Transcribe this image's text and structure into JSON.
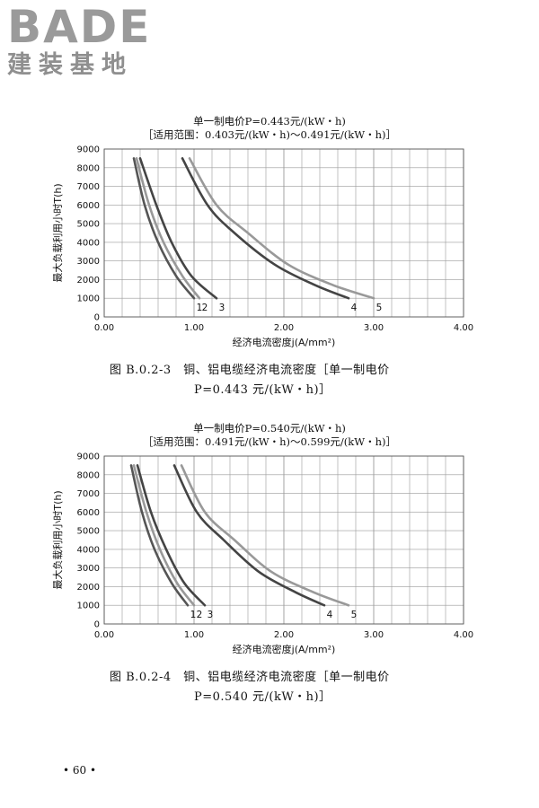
{
  "header": {
    "logo_text": "BADE",
    "logo_subtitle": "建装基地"
  },
  "page_number": "• 60 •",
  "chart_data": [
    {
      "type": "line",
      "title": "单一制电价P=0.443元/(kW・h)",
      "subtitle": "［适用范围：0.403元/(kW・h)～0.491元/(kW・h)］",
      "xlabel": "经济电流密度j(A/mm²)",
      "ylabel": "最大负载利用小时T(h)",
      "xlim": [
        0,
        4
      ],
      "ylim": [
        0,
        9000
      ],
      "xticks": [
        "0.00",
        "1.00",
        "2.00",
        "3.00",
        "4.00"
      ],
      "yticks": [
        "0",
        "1000",
        "2000",
        "3000",
        "4000",
        "5000",
        "6000",
        "7000",
        "8000",
        "9000"
      ],
      "grid": true,
      "series": [
        {
          "name": "1",
          "color": "#555555",
          "points": [
            [
              0.33,
              8500
            ],
            [
              0.45,
              6000
            ],
            [
              0.6,
              4000
            ],
            [
              0.8,
              2200
            ],
            [
              1.0,
              1000
            ]
          ]
        },
        {
          "name": "2",
          "color": "#999999",
          "points": [
            [
              0.36,
              8500
            ],
            [
              0.5,
              6000
            ],
            [
              0.66,
              4000
            ],
            [
              0.87,
              2200
            ],
            [
              1.06,
              1000
            ]
          ]
        },
        {
          "name": "3",
          "color": "#444444",
          "points": [
            [
              0.4,
              8500
            ],
            [
              0.58,
              6000
            ],
            [
              0.75,
              4000
            ],
            [
              0.97,
              2200
            ],
            [
              1.25,
              1000
            ]
          ]
        },
        {
          "name": "4",
          "color": "#444444",
          "points": [
            [
              0.87,
              8500
            ],
            [
              1.15,
              6000
            ],
            [
              1.45,
              4500
            ],
            [
              1.9,
              2800
            ],
            [
              2.35,
              1700
            ],
            [
              2.72,
              1000
            ]
          ]
        },
        {
          "name": "5",
          "color": "#999999",
          "points": [
            [
              0.95,
              8500
            ],
            [
              1.25,
              6000
            ],
            [
              1.6,
              4500
            ],
            [
              2.05,
              2800
            ],
            [
              2.55,
              1700
            ],
            [
              3.0,
              1000
            ]
          ]
        }
      ],
      "caption_line1": "图 B.0.2-3　铜、铝电缆经济电流密度［单一制电价",
      "caption_line2": "P=0.443 元/(kW・h)］"
    },
    {
      "type": "line",
      "title": "单一制电价P=0.540元/(kW・h)",
      "subtitle": "［适用范围：0.491元/(kW・h)～0.599元/(kW・h)］",
      "xlabel": "经济电流密度j(A/mm²)",
      "ylabel": "最大负载利用小时T(h)",
      "xlim": [
        0,
        4
      ],
      "ylim": [
        0,
        9000
      ],
      "xticks": [
        "0.00",
        "1.00",
        "2.00",
        "3.00",
        "4.00"
      ],
      "yticks": [
        "0",
        "1000",
        "2000",
        "3000",
        "4000",
        "5000",
        "6000",
        "7000",
        "8000",
        "9000"
      ],
      "grid": true,
      "series": [
        {
          "name": "1",
          "color": "#555555",
          "points": [
            [
              0.3,
              8500
            ],
            [
              0.42,
              6000
            ],
            [
              0.56,
              4000
            ],
            [
              0.75,
              2200
            ],
            [
              0.93,
              1000
            ]
          ]
        },
        {
          "name": "2",
          "color": "#999999",
          "points": [
            [
              0.33,
              8500
            ],
            [
              0.47,
              6000
            ],
            [
              0.62,
              4000
            ],
            [
              0.81,
              2200
            ],
            [
              1.0,
              1000
            ]
          ]
        },
        {
          "name": "3",
          "color": "#444444",
          "points": [
            [
              0.37,
              8500
            ],
            [
              0.52,
              6000
            ],
            [
              0.69,
              4000
            ],
            [
              0.89,
              2200
            ],
            [
              1.12,
              1000
            ]
          ]
        },
        {
          "name": "4",
          "color": "#444444",
          "points": [
            [
              0.78,
              8500
            ],
            [
              1.03,
              6000
            ],
            [
              1.33,
              4500
            ],
            [
              1.72,
              2800
            ],
            [
              2.13,
              1700
            ],
            [
              2.45,
              1000
            ]
          ]
        },
        {
          "name": "5",
          "color": "#999999",
          "points": [
            [
              0.86,
              8500
            ],
            [
              1.12,
              6000
            ],
            [
              1.45,
              4500
            ],
            [
              1.86,
              2800
            ],
            [
              2.33,
              1700
            ],
            [
              2.72,
              1000
            ]
          ]
        }
      ],
      "caption_line1": "图 B.0.2-4　铜、铝电缆经济电流密度［单一制电价",
      "caption_line2": "P=0.540 元/(kW・h)］"
    }
  ]
}
